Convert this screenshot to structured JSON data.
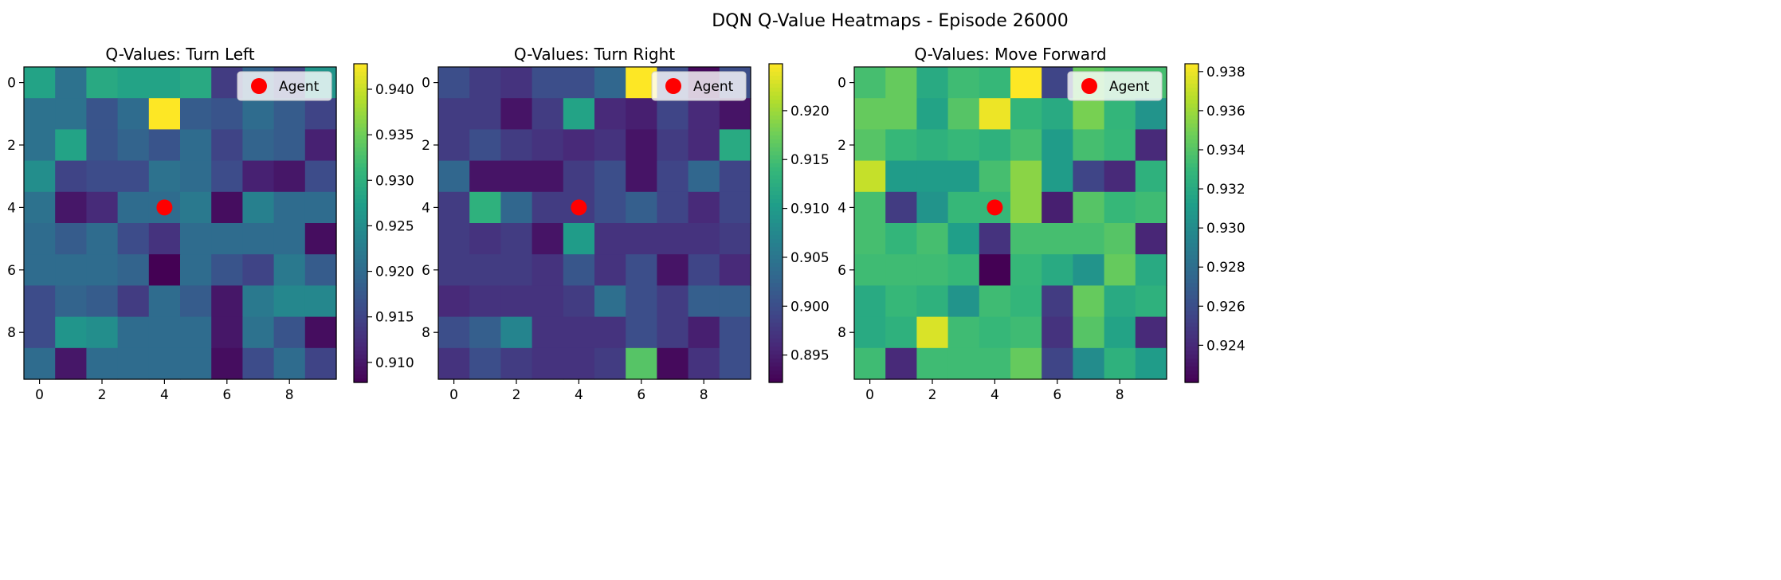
{
  "figure_title": "DQN Q-Value Heatmaps - Episode 26000",
  "colormap": [
    "#440154",
    "#482878",
    "#3e4989",
    "#31688e",
    "#26828e",
    "#1f9e89",
    "#35b779",
    "#6ece58",
    "#b5de2b",
    "#fde725"
  ],
  "agent_marker_color": "#ff0000",
  "chart_data": [
    {
      "type": "heatmap",
      "title": "Q-Values: Turn Left",
      "xticks": [
        0,
        2,
        4,
        6,
        8
      ],
      "yticks": [
        0,
        2,
        4,
        6,
        8
      ],
      "colorbar_ticks": [
        0.91,
        0.915,
        0.92,
        0.925,
        0.93,
        0.935,
        0.94
      ],
      "vmin": 0.9078,
      "vmax": 0.9428,
      "legend": {
        "label": "Agent",
        "position": "upper right"
      },
      "agent": {
        "x": 4,
        "y": 4
      },
      "values": [
        [
          0.928,
          0.921,
          0.929,
          0.928,
          0.928,
          0.929,
          0.914,
          0.919,
          0.915,
          0.926
        ],
        [
          0.921,
          0.921,
          0.917,
          0.92,
          0.9428,
          0.918,
          0.917,
          0.92,
          0.918,
          0.915
        ],
        [
          0.921,
          0.928,
          0.917,
          0.919,
          0.917,
          0.92,
          0.915,
          0.919,
          0.918,
          0.911
        ],
        [
          0.925,
          0.915,
          0.916,
          0.916,
          0.921,
          0.92,
          0.916,
          0.911,
          0.91,
          0.916
        ],
        [
          0.921,
          0.91,
          0.912,
          0.92,
          0.92,
          0.922,
          0.909,
          0.923,
          0.92,
          0.92
        ],
        [
          0.92,
          0.918,
          0.92,
          0.916,
          0.913,
          0.92,
          0.92,
          0.92,
          0.92,
          0.909
        ],
        [
          0.92,
          0.92,
          0.92,
          0.919,
          0.9078,
          0.92,
          0.917,
          0.915,
          0.922,
          0.918
        ],
        [
          0.916,
          0.919,
          0.918,
          0.914,
          0.92,
          0.918,
          0.91,
          0.922,
          0.924,
          0.924
        ],
        [
          0.916,
          0.926,
          0.925,
          0.92,
          0.92,
          0.92,
          0.91,
          0.921,
          0.917,
          0.909
        ],
        [
          0.92,
          0.91,
          0.92,
          0.92,
          0.92,
          0.92,
          0.909,
          0.916,
          0.92,
          0.915
        ]
      ]
    },
    {
      "type": "heatmap",
      "title": "Q-Values: Turn Right",
      "xticks": [
        0,
        2,
        4,
        6,
        8
      ],
      "yticks": [
        0,
        2,
        4,
        6,
        8
      ],
      "colorbar_ticks": [
        0.895,
        0.9,
        0.905,
        0.91,
        0.915,
        0.92
      ],
      "vmin": 0.8922,
      "vmax": 0.9248,
      "legend": {
        "label": "Agent",
        "position": "upper right"
      },
      "agent": {
        "x": 4,
        "y": 4
      },
      "values": [
        [
          0.9,
          0.898,
          0.897,
          0.9,
          0.9,
          0.903,
          0.9248,
          0.9,
          0.893,
          0.9
        ],
        [
          0.898,
          0.898,
          0.894,
          0.898,
          0.911,
          0.896,
          0.895,
          0.899,
          0.896,
          0.894
        ],
        [
          0.898,
          0.9,
          0.898,
          0.897,
          0.896,
          0.897,
          0.894,
          0.898,
          0.896,
          0.912
        ],
        [
          0.903,
          0.894,
          0.894,
          0.894,
          0.898,
          0.9,
          0.894,
          0.899,
          0.903,
          0.899
        ],
        [
          0.898,
          0.913,
          0.903,
          0.898,
          0.898,
          0.9,
          0.902,
          0.899,
          0.896,
          0.899
        ],
        [
          0.898,
          0.897,
          0.898,
          0.894,
          0.91,
          0.897,
          0.897,
          0.897,
          0.897,
          0.898
        ],
        [
          0.898,
          0.898,
          0.898,
          0.897,
          0.901,
          0.897,
          0.9,
          0.894,
          0.899,
          0.896
        ],
        [
          0.896,
          0.897,
          0.897,
          0.897,
          0.898,
          0.904,
          0.9,
          0.898,
          0.902,
          0.902
        ],
        [
          0.9,
          0.902,
          0.907,
          0.897,
          0.897,
          0.897,
          0.9,
          0.898,
          0.895,
          0.9
        ],
        [
          0.897,
          0.9,
          0.898,
          0.897,
          0.897,
          0.898,
          0.916,
          0.893,
          0.897,
          0.9
        ]
      ]
    },
    {
      "type": "heatmap",
      "title": "Q-Values: Move Forward",
      "xticks": [
        0,
        2,
        4,
        6,
        8
      ],
      "yticks": [
        0,
        2,
        4,
        6,
        8
      ],
      "colorbar_ticks": [
        0.924,
        0.926,
        0.928,
        0.93,
        0.932,
        0.934,
        0.936,
        0.938
      ],
      "vmin": 0.9221,
      "vmax": 0.9384,
      "legend": {
        "label": "Agent",
        "position": "upper right"
      },
      "agent": {
        "x": 4,
        "y": 4
      },
      "values": [
        [
          0.9335,
          0.9345,
          0.932,
          0.9333,
          0.933,
          0.9384,
          0.9255,
          0.9345,
          0.9335,
          0.9335
        ],
        [
          0.9345,
          0.9345,
          0.9315,
          0.934,
          0.938,
          0.9328,
          0.932,
          0.935,
          0.9328,
          0.9305
        ],
        [
          0.934,
          0.933,
          0.9325,
          0.933,
          0.9325,
          0.9335,
          0.931,
          0.9335,
          0.933,
          0.924
        ],
        [
          0.937,
          0.931,
          0.931,
          0.931,
          0.9335,
          0.9355,
          0.931,
          0.9255,
          0.924,
          0.9325
        ],
        [
          0.9335,
          0.925,
          0.9305,
          0.933,
          0.933,
          0.9355,
          0.9235,
          0.934,
          0.933,
          0.9333
        ],
        [
          0.9335,
          0.9328,
          0.9335,
          0.9312,
          0.9245,
          0.9335,
          0.9335,
          0.9335,
          0.934,
          0.9238
        ],
        [
          0.9333,
          0.9333,
          0.9333,
          0.933,
          0.9221,
          0.933,
          0.932,
          0.9305,
          0.9345,
          0.932
        ],
        [
          0.932,
          0.933,
          0.9325,
          0.9305,
          0.9333,
          0.9328,
          0.925,
          0.9345,
          0.932,
          0.9325
        ],
        [
          0.932,
          0.9325,
          0.9375,
          0.9333,
          0.933,
          0.9333,
          0.9245,
          0.934,
          0.9315,
          0.924
        ],
        [
          0.9333,
          0.924,
          0.9333,
          0.9333,
          0.9333,
          0.9345,
          0.9255,
          0.93,
          0.9325,
          0.931
        ]
      ]
    }
  ]
}
